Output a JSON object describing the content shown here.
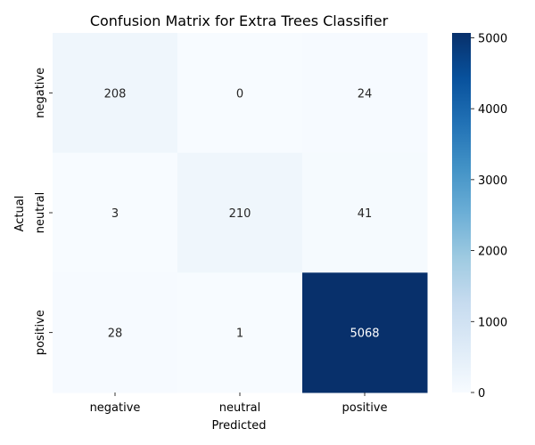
{
  "chart_data": {
    "type": "heatmap",
    "title": "Confusion Matrix for Extra Trees Classifier",
    "xlabel": "Predicted",
    "ylabel": "Actual",
    "x_categories": [
      "negative",
      "neutral",
      "positive"
    ],
    "y_categories": [
      "negative",
      "neutral",
      "positive"
    ],
    "values": [
      [
        208,
        0,
        24
      ],
      [
        3,
        210,
        41
      ],
      [
        28,
        1,
        5068
      ]
    ],
    "colormap": "Blues",
    "value_range": [
      0,
      5068
    ],
    "colorbar": {
      "ticks": [
        0,
        1000,
        2000,
        3000,
        4000,
        5000
      ],
      "tick_labels": [
        "0",
        "1000",
        "2000",
        "3000",
        "4000",
        "5000"
      ]
    },
    "colors": {
      "low": "#f7fbff",
      "high": "#08306b",
      "text_dark": "#262626",
      "text_light": "#ffffff"
    }
  }
}
